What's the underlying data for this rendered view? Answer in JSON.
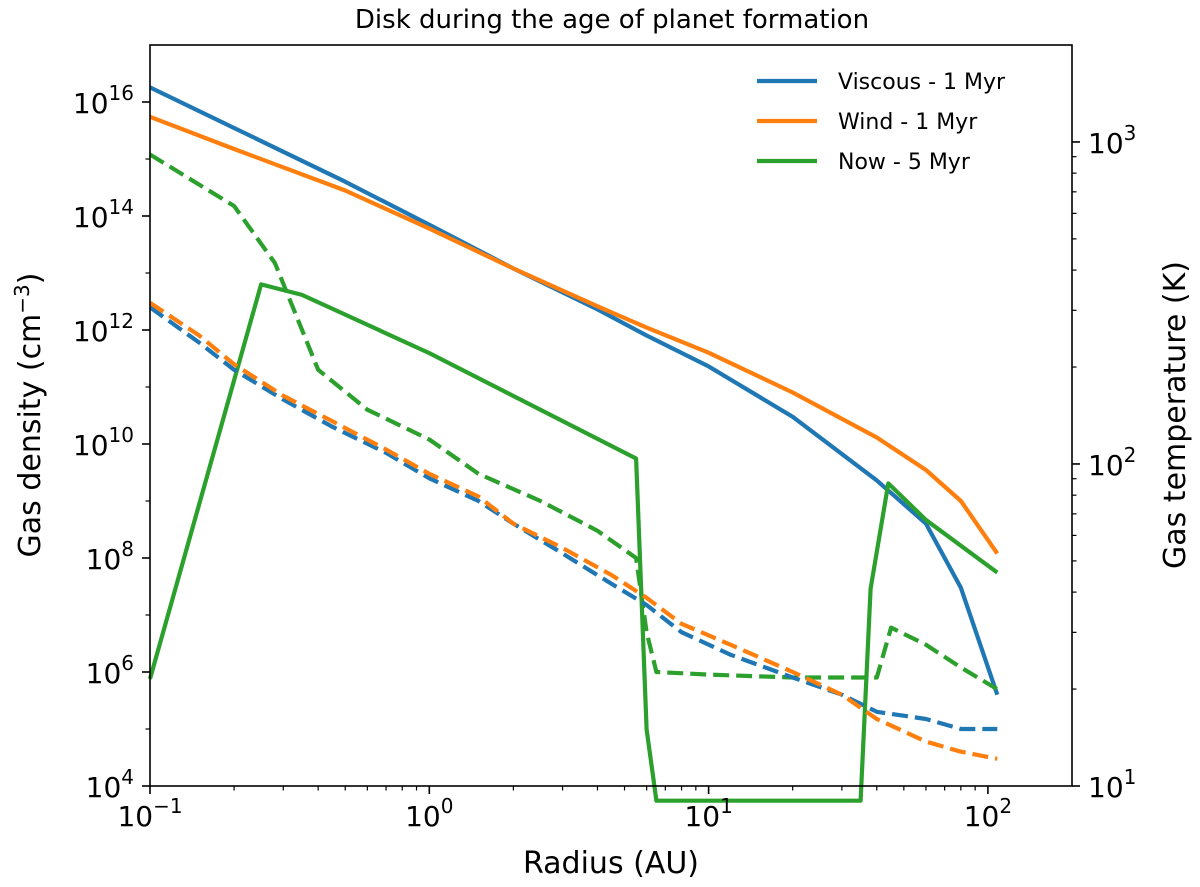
{
  "chart_data": {
    "type": "line",
    "title": "Disk during the age of planet formation",
    "xlabel": "Radius (AU)",
    "ylabel_left": {
      "main": "Gas density (cm",
      "exp": "−3",
      "close": ")"
    },
    "ylabel_right": "Gas temperature (K)",
    "x_scale": "log",
    "y_left_scale": "log",
    "y_right_scale": "log",
    "xlim": [
      0.1,
      200
    ],
    "ylim_left": [
      10000,
      1e+17
    ],
    "ylim_right": [
      10,
      2000
    ],
    "x_ticks": [
      {
        "base": "10",
        "exp": "−1",
        "value": 0.1
      },
      {
        "base": "10",
        "exp": "0",
        "value": 1
      },
      {
        "base": "10",
        "exp": "1",
        "value": 10
      },
      {
        "base": "10",
        "exp": "2",
        "value": 100
      }
    ],
    "y_left_ticks": [
      {
        "base": "10",
        "exp": "4",
        "value": 10000.0
      },
      {
        "base": "10",
        "exp": "6",
        "value": 1000000.0
      },
      {
        "base": "10",
        "exp": "8",
        "value": 100000000.0
      },
      {
        "base": "10",
        "exp": "10",
        "value": 10000000000.0
      },
      {
        "base": "10",
        "exp": "12",
        "value": 1000000000000.0
      },
      {
        "base": "10",
        "exp": "14",
        "value": 100000000000000.0
      },
      {
        "base": "10",
        "exp": "16",
        "value": 1e+16
      }
    ],
    "y_right_ticks": [
      {
        "base": "10",
        "exp": "1",
        "value": 10
      },
      {
        "base": "10",
        "exp": "2",
        "value": 100
      },
      {
        "base": "10",
        "exp": "3",
        "value": 1000
      }
    ],
    "legend": {
      "placement": "top-right"
    },
    "grid": false,
    "series": [
      {
        "name": "Viscous - 1 Myr",
        "color": "#1f77b4",
        "axis": "left",
        "style": "solid",
        "in_legend": true,
        "x": [
          0.1,
          0.2,
          0.5,
          1,
          2,
          4,
          6,
          10,
          20,
          40,
          60,
          80,
          108
        ],
        "y": [
          1.8e+16,
          3500000000000000.0,
          400000000000000.0,
          70000000000000.0,
          12000000000000.0,
          2300000000000.0,
          800000000000.0,
          230000000000.0,
          30000000000.0,
          2300000000.0,
          400000000.0,
          30000000.0,
          400000.0
        ]
      },
      {
        "name": "Wind - 1 Myr",
        "color": "#ff7f0e",
        "axis": "left",
        "style": "solid",
        "in_legend": true,
        "x": [
          0.1,
          0.2,
          0.5,
          1,
          2,
          4,
          6,
          10,
          20,
          40,
          60,
          80,
          108
        ],
        "y": [
          5500000000000000.0,
          1500000000000000.0,
          280000000000000.0,
          60000000000000.0,
          12000000000000.0,
          2600000000000.0,
          1100000000000.0,
          400000000000.0,
          80000000000.0,
          13000000000.0,
          3500000000.0,
          1000000000.0,
          120000000.0
        ]
      },
      {
        "name": "Now - 5 Myr",
        "color": "#2ca02c",
        "axis": "right",
        "style": "solid",
        "in_legend": true,
        "x": [
          0.1,
          0.25,
          0.35,
          1,
          5.5,
          6.0,
          6.5,
          35,
          38,
          44,
          60,
          108
        ],
        "y": [
          21.5,
          361,
          335,
          221,
          104,
          15,
          9,
          9,
          41,
          87,
          67,
          46
        ]
      },
      {
        "name": "",
        "color": "#2ca02c",
        "axis": "left",
        "style": "dashed",
        "in_legend": false,
        "x": [
          0.1,
          0.2,
          0.28,
          0.4,
          0.6,
          1,
          1.5,
          2.5,
          4,
          5.5,
          6.0,
          6.5,
          10,
          20,
          30,
          40,
          45,
          60,
          80,
          108
        ],
        "y": [
          1200000000000000.0,
          150000000000000.0,
          15000000000000.0,
          200000000000.0,
          40000000000.0,
          12000000000.0,
          3000000000.0,
          1000000000.0,
          300000000.0,
          100000000.0,
          5000000.0,
          1000000.0,
          900000.0,
          800000.0,
          800000.0,
          800000.0,
          6000000.0,
          3000000.0,
          1200000.0,
          500000.0
        ]
      },
      {
        "name": "",
        "color": "#1f77b4",
        "axis": "left",
        "style": "dashed",
        "in_legend": false,
        "x": [
          0.1,
          0.15,
          0.2,
          0.3,
          0.45,
          0.7,
          1,
          1.5,
          2,
          3,
          4.5,
          6,
          8,
          12,
          20,
          30,
          40,
          60,
          80,
          108
        ],
        "y": [
          2500000000000.0,
          600000000000.0,
          200000000000.0,
          60000000000.0,
          20000000000.0,
          7000000000.0,
          2500000000.0,
          1000000000.0,
          400000000.0,
          120000000.0,
          35000000.0,
          15000000.0,
          5000000.0,
          2000000.0,
          800000.0,
          400000.0,
          200000.0,
          150000.0,
          100000.0,
          100000.0
        ]
      },
      {
        "name": "",
        "color": "#ff7f0e",
        "axis": "left",
        "style": "dashed",
        "in_legend": false,
        "x": [
          0.1,
          0.15,
          0.2,
          0.3,
          0.45,
          0.7,
          1,
          1.5,
          2,
          3,
          4.5,
          6,
          8,
          12,
          20,
          30,
          40,
          60,
          80,
          108
        ],
        "y": [
          3000000000000.0,
          800000000000.0,
          250000000000.0,
          70000000000.0,
          25000000000.0,
          8000000000.0,
          3000000000.0,
          1200000000.0,
          400000000.0,
          150000000.0,
          50000000.0,
          20000000.0,
          7000000.0,
          3000000.0,
          1000000.0,
          400000.0,
          150000.0,
          60000.0,
          40000.0,
          30000.0
        ]
      }
    ]
  }
}
